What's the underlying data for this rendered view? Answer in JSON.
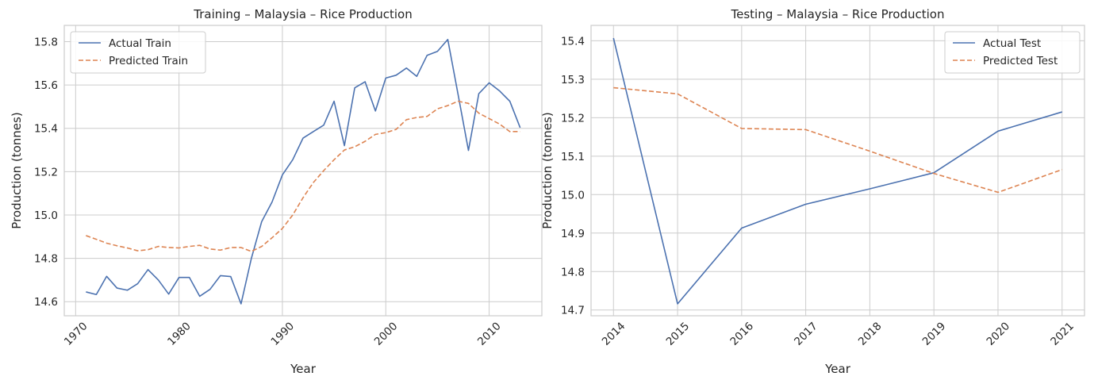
{
  "chart_data": [
    {
      "type": "line",
      "title": "Training – Malaysia – Rice  Production",
      "xlabel": "Year",
      "ylabel": "Production (tonnes)",
      "xlim": [
        1968.9,
        2015.1
      ],
      "ylim": [
        14.535,
        15.875
      ],
      "xticks": [
        1970,
        1980,
        1990,
        2000,
        2010
      ],
      "yticks": [
        14.6,
        14.8,
        15.0,
        15.2,
        15.4,
        15.6,
        15.8
      ],
      "ytick_decimals": 1,
      "grid": true,
      "legend_position": "top-left",
      "x": [
        1971,
        1972,
        1973,
        1974,
        1975,
        1976,
        1977,
        1978,
        1979,
        1980,
        1981,
        1982,
        1983,
        1984,
        1985,
        1986,
        1987,
        1988,
        1989,
        1990,
        1991,
        1992,
        1993,
        1994,
        1995,
        1996,
        1997,
        1998,
        1999,
        2000,
        2001,
        2002,
        2003,
        2004,
        2005,
        2006,
        2007,
        2008,
        2009,
        2010,
        2011,
        2012,
        2013
      ],
      "series": [
        {
          "name": "Actual Train",
          "color": "#4c72b0",
          "dash": "solid",
          "values": [
            14.645,
            14.633,
            14.717,
            14.663,
            14.653,
            14.683,
            14.748,
            14.7,
            14.635,
            14.712,
            14.712,
            14.625,
            14.657,
            14.72,
            14.716,
            14.59,
            14.8,
            14.97,
            15.06,
            15.185,
            15.255,
            15.355,
            15.385,
            15.415,
            15.525,
            15.32,
            15.587,
            15.615,
            15.48,
            15.632,
            15.645,
            15.678,
            15.64,
            15.737,
            15.755,
            15.81,
            15.555,
            15.298,
            15.56,
            15.61,
            15.573,
            15.525,
            15.403
          ]
        },
        {
          "name": "Predicted Train",
          "color": "#dd8452",
          "dash": "dashed",
          "values": [
            14.905,
            14.888,
            14.87,
            14.858,
            14.848,
            14.835,
            14.84,
            14.855,
            14.85,
            14.848,
            14.855,
            14.86,
            14.843,
            14.838,
            14.85,
            14.85,
            14.832,
            14.855,
            14.895,
            14.938,
            15.0,
            15.08,
            15.15,
            15.205,
            15.255,
            15.3,
            15.315,
            15.34,
            15.372,
            15.38,
            15.395,
            15.44,
            15.45,
            15.455,
            15.49,
            15.505,
            15.525,
            15.515,
            15.47,
            15.445,
            15.42,
            15.385,
            15.385
          ]
        }
      ]
    },
    {
      "type": "line",
      "title": "Testing – Malaysia – Rice  Production",
      "xlabel": "Year",
      "ylabel": "Production (tonnes)",
      "xlim": [
        2013.65,
        2021.35
      ],
      "ylim": [
        14.685,
        15.44
      ],
      "xticks": [
        2014,
        2015,
        2016,
        2017,
        2018,
        2019,
        2020,
        2021
      ],
      "yticks": [
        14.7,
        14.8,
        14.9,
        15.0,
        15.1,
        15.2,
        15.3,
        15.4
      ],
      "ytick_decimals": 1,
      "grid": true,
      "legend_position": "top-right",
      "x": [
        2014,
        2015,
        2016,
        2017,
        2018,
        2019,
        2020,
        2021
      ],
      "series": [
        {
          "name": "Actual Test",
          "color": "#4c72b0",
          "dash": "solid",
          "values": [
            15.407,
            14.716,
            14.913,
            14.975,
            15.015,
            15.057,
            15.165,
            15.215
          ]
        },
        {
          "name": "Predicted Test",
          "color": "#dd8452",
          "dash": "dashed",
          "values": [
            15.278,
            15.262,
            15.172,
            15.169,
            15.113,
            15.055,
            15.006,
            15.065
          ]
        }
      ]
    }
  ]
}
